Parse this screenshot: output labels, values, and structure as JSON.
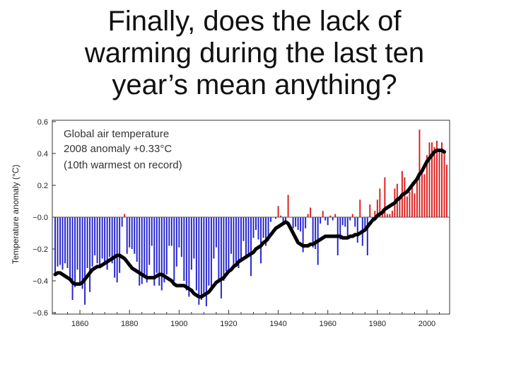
{
  "slide": {
    "title_lines": [
      "Finally, does the lack of",
      "warming during the last ten",
      "year’s mean anything?"
    ]
  },
  "chart_data": {
    "type": "bar",
    "ylabel": "Temperature anomaly (°C)",
    "xlabel": "",
    "xlim": [
      1850,
      2008
    ],
    "ylim": [
      -0.6,
      0.6
    ],
    "x_ticks": [
      1860,
      1880,
      1900,
      1920,
      1940,
      1960,
      1980,
      2000
    ],
    "x_tick_labels": [
      "1860",
      "1880",
      "1900",
      "1920",
      "1940",
      "1960",
      "1980",
      "2000"
    ],
    "y_ticks": [
      0.6,
      0.4,
      0.2,
      0.0,
      -0.2,
      -0.4,
      -0.6
    ],
    "y_tick_labels": [
      "0.6",
      "0.4",
      "0.2",
      "−0.0",
      "−0.2",
      "−0.4",
      "−0.6"
    ],
    "annotations": [
      "Global air temperature",
      "2008 anomaly +0.33°C",
      "(10th warmest on record)"
    ],
    "colors": {
      "positive": "#dd1c1c",
      "negative": "#2222cc",
      "smooth": "#000000"
    },
    "years": [
      1850,
      1851,
      1852,
      1853,
      1854,
      1855,
      1856,
      1857,
      1858,
      1859,
      1860,
      1861,
      1862,
      1863,
      1864,
      1865,
      1866,
      1867,
      1868,
      1869,
      1870,
      1871,
      1872,
      1873,
      1874,
      1875,
      1876,
      1877,
      1878,
      1879,
      1880,
      1881,
      1882,
      1883,
      1884,
      1885,
      1886,
      1887,
      1888,
      1889,
      1890,
      1891,
      1892,
      1893,
      1894,
      1895,
      1896,
      1897,
      1898,
      1899,
      1900,
      1901,
      1902,
      1903,
      1904,
      1905,
      1906,
      1907,
      1908,
      1909,
      1910,
      1911,
      1912,
      1913,
      1914,
      1915,
      1916,
      1917,
      1918,
      1919,
      1920,
      1921,
      1922,
      1923,
      1924,
      1925,
      1926,
      1927,
      1928,
      1929,
      1930,
      1931,
      1932,
      1933,
      1934,
      1935,
      1936,
      1937,
      1938,
      1939,
      1940,
      1941,
      1942,
      1943,
      1944,
      1945,
      1946,
      1947,
      1948,
      1949,
      1950,
      1951,
      1952,
      1953,
      1954,
      1955,
      1956,
      1957,
      1958,
      1959,
      1960,
      1961,
      1962,
      1963,
      1964,
      1965,
      1966,
      1967,
      1968,
      1969,
      1970,
      1971,
      1972,
      1973,
      1974,
      1975,
      1976,
      1977,
      1978,
      1979,
      1980,
      1981,
      1982,
      1983,
      1984,
      1985,
      1986,
      1987,
      1988,
      1989,
      1990,
      1991,
      1992,
      1993,
      1994,
      1995,
      1996,
      1997,
      1998,
      1999,
      2000,
      2001,
      2002,
      2003,
      2004,
      2005,
      2006,
      2007,
      2008
    ],
    "annual_anomaly": [
      -0.37,
      -0.31,
      -0.3,
      -0.33,
      -0.29,
      -0.32,
      -0.39,
      -0.52,
      -0.44,
      -0.33,
      -0.41,
      -0.45,
      -0.55,
      -0.32,
      -0.47,
      -0.31,
      -0.24,
      -0.29,
      -0.3,
      -0.26,
      -0.29,
      -0.33,
      -0.25,
      -0.29,
      -0.38,
      -0.41,
      -0.35,
      -0.06,
      0.02,
      -0.23,
      -0.19,
      -0.2,
      -0.23,
      -0.28,
      -0.43,
      -0.42,
      -0.36,
      -0.41,
      -0.3,
      -0.18,
      -0.43,
      -0.35,
      -0.43,
      -0.46,
      -0.41,
      -0.36,
      -0.18,
      -0.18,
      -0.4,
      -0.31,
      -0.19,
      -0.25,
      -0.4,
      -0.46,
      -0.5,
      -0.33,
      -0.26,
      -0.46,
      -0.55,
      -0.52,
      -0.49,
      -0.56,
      -0.43,
      -0.44,
      -0.26,
      -0.19,
      -0.39,
      -0.51,
      -0.4,
      -0.34,
      -0.33,
      -0.23,
      -0.32,
      -0.31,
      -0.32,
      -0.27,
      -0.15,
      -0.25,
      -0.25,
      -0.37,
      -0.13,
      -0.08,
      -0.14,
      -0.29,
      -0.13,
      -0.18,
      -0.15,
      -0.03,
      0.0,
      -0.01,
      0.07,
      0.01,
      -0.03,
      -0.03,
      0.14,
      0.0,
      -0.07,
      -0.06,
      -0.08,
      -0.09,
      -0.22,
      -0.07,
      0.02,
      0.06,
      -0.19,
      -0.2,
      -0.3,
      -0.04,
      0.04,
      -0.02,
      -0.05,
      0.01,
      -0.02,
      0.02,
      -0.24,
      -0.14,
      -0.05,
      -0.06,
      -0.13,
      -0.02,
      0.02,
      -0.06,
      -0.16,
      0.11,
      -0.18,
      -0.08,
      -0.24,
      0.08,
      -0.03,
      0.04,
      0.11,
      0.18,
      0.05,
      0.25,
      0.02,
      0.02,
      0.04,
      0.18,
      0.21,
      0.12,
      0.29,
      0.25,
      0.13,
      0.16,
      0.22,
      0.15,
      0.25,
      0.55,
      0.29,
      0.27,
      0.39,
      0.47,
      0.47,
      0.44,
      0.48,
      0.43,
      0.47,
      0.4,
      0.33
    ],
    "smoothed_anomaly": [
      -0.36,
      -0.35,
      -0.35,
      -0.36,
      -0.37,
      -0.38,
      -0.39,
      -0.41,
      -0.42,
      -0.42,
      -0.42,
      -0.41,
      -0.39,
      -0.37,
      -0.35,
      -0.33,
      -0.32,
      -0.31,
      -0.31,
      -0.3,
      -0.29,
      -0.28,
      -0.27,
      -0.26,
      -0.25,
      -0.24,
      -0.24,
      -0.25,
      -0.26,
      -0.28,
      -0.3,
      -0.32,
      -0.33,
      -0.34,
      -0.35,
      -0.36,
      -0.37,
      -0.38,
      -0.38,
      -0.38,
      -0.38,
      -0.37,
      -0.36,
      -0.36,
      -0.37,
      -0.38,
      -0.39,
      -0.4,
      -0.42,
      -0.43,
      -0.43,
      -0.43,
      -0.43,
      -0.44,
      -0.45,
      -0.46,
      -0.48,
      -0.49,
      -0.5,
      -0.5,
      -0.49,
      -0.48,
      -0.47,
      -0.45,
      -0.43,
      -0.41,
      -0.4,
      -0.39,
      -0.38,
      -0.36,
      -0.34,
      -0.33,
      -0.31,
      -0.3,
      -0.28,
      -0.27,
      -0.26,
      -0.25,
      -0.24,
      -0.23,
      -0.22,
      -0.2,
      -0.19,
      -0.18,
      -0.16,
      -0.15,
      -0.13,
      -0.11,
      -0.09,
      -0.07,
      -0.06,
      -0.05,
      -0.04,
      -0.03,
      -0.04,
      -0.07,
      -0.1,
      -0.13,
      -0.16,
      -0.17,
      -0.18,
      -0.18,
      -0.18,
      -0.17,
      -0.17,
      -0.16,
      -0.15,
      -0.14,
      -0.13,
      -0.12,
      -0.12,
      -0.12,
      -0.12,
      -0.12,
      -0.12,
      -0.12,
      -0.13,
      -0.13,
      -0.13,
      -0.12,
      -0.12,
      -0.11,
      -0.11,
      -0.1,
      -0.09,
      -0.08,
      -0.06,
      -0.04,
      -0.02,
      -0.01,
      0.01,
      0.02,
      0.03,
      0.05,
      0.06,
      0.07,
      0.08,
      0.09,
      0.11,
      0.12,
      0.14,
      0.15,
      0.16,
      0.18,
      0.2,
      0.22,
      0.24,
      0.27,
      0.29,
      0.32,
      0.35,
      0.37,
      0.39,
      0.41,
      0.42,
      0.42,
      0.42,
      0.41
    ]
  }
}
